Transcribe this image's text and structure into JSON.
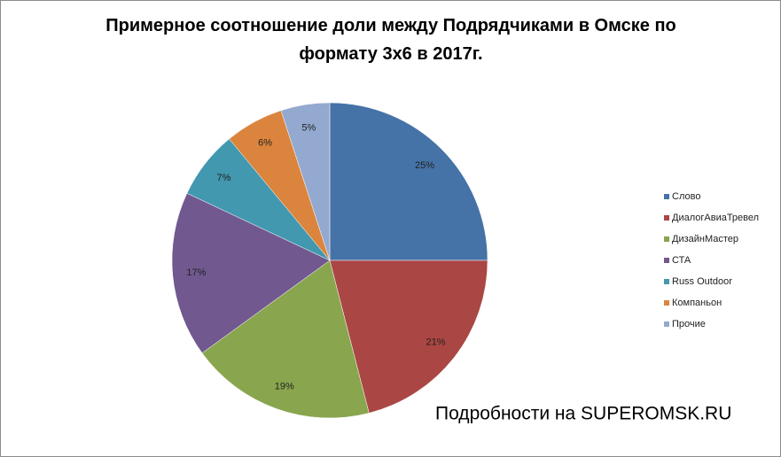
{
  "chart_data": {
    "type": "pie",
    "title": "Примерное соотношение доли между Подрядчиками в Омске по формату 3х6 в 2017г.",
    "categories": [
      "Слово",
      "ДиалогАвиаТревел",
      "ДизайнМастер",
      "СТА",
      "Russ Outdoor",
      "Компаньон",
      "Прочие"
    ],
    "values": [
      25,
      21,
      19,
      17,
      7,
      6,
      5
    ],
    "value_labels": [
      "25%",
      "21%",
      "19%",
      "17%",
      "7%",
      "6%",
      "5%"
    ],
    "colors": [
      "#4572a7",
      "#aa4643",
      "#89a54e",
      "#71588f",
      "#4198af",
      "#db843d",
      "#93a9cf"
    ],
    "legend": "right",
    "annotation": "Подробности на SUPEROMSK.RU"
  }
}
